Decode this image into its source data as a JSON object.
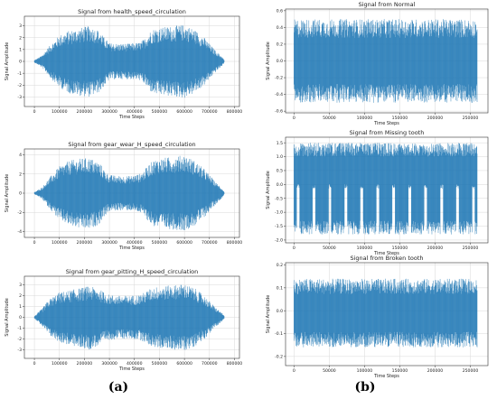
{
  "panel_labels": {
    "a": "(a)",
    "b": "(b)"
  },
  "colors": {
    "signal": "#1f77b4",
    "grid": "#d8d8d8",
    "frame": "#333333"
  },
  "chart_data": [
    {
      "type": "line",
      "title": "Signal from health_speed_circulation",
      "xlabel": "Time Steps",
      "ylabel": "Signal Amplitude",
      "xlim": [
        -40000,
        820000
      ],
      "ylim": [
        -3.8,
        3.8
      ],
      "xticks": [
        0,
        100000,
        200000,
        300000,
        400000,
        500000,
        600000,
        700000,
        800000
      ],
      "yticks": [
        -3,
        -2,
        -1,
        0,
        1,
        2,
        3
      ],
      "grid": true,
      "envelope": {
        "x": [
          0,
          30000,
          60000,
          100000,
          140000,
          180000,
          220000,
          260000,
          280000,
          300000,
          340000,
          380000,
          420000,
          440000,
          460000,
          480000,
          520000,
          560000,
          600000,
          640000,
          680000,
          720000,
          750000,
          760000
        ],
        "upper": [
          0.1,
          0.5,
          1.3,
          2.2,
          2.6,
          2.8,
          3.0,
          2.6,
          2.0,
          1.55,
          1.5,
          1.5,
          1.6,
          1.9,
          2.5,
          2.8,
          2.9,
          3.0,
          3.1,
          2.7,
          2.0,
          1.0,
          0.4,
          0.1
        ],
        "lower": [
          -0.1,
          -0.5,
          -1.3,
          -2.2,
          -2.7,
          -2.9,
          -3.0,
          -2.6,
          -2.1,
          -1.55,
          -1.5,
          -1.5,
          -1.6,
          -1.9,
          -2.5,
          -2.8,
          -2.9,
          -3.0,
          -3.1,
          -2.7,
          -2.0,
          -1.0,
          -0.4,
          -0.1
        ]
      }
    },
    {
      "type": "line",
      "title": "Signal from gear_wear_H_speed_circulation",
      "xlabel": "Time Steps",
      "ylabel": "Signal Amplitude",
      "xlim": [
        -40000,
        820000
      ],
      "ylim": [
        -4.6,
        4.6
      ],
      "xticks": [
        0,
        100000,
        200000,
        300000,
        400000,
        500000,
        600000,
        700000,
        800000
      ],
      "yticks": [
        -4,
        -2,
        0,
        2,
        4
      ],
      "grid": true,
      "envelope": {
        "x": [
          0,
          30000,
          60000,
          100000,
          140000,
          180000,
          220000,
          260000,
          280000,
          300000,
          340000,
          380000,
          420000,
          440000,
          460000,
          480000,
          520000,
          560000,
          600000,
          640000,
          680000,
          720000,
          750000,
          760000
        ],
        "upper": [
          0.1,
          0.6,
          1.6,
          2.8,
          3.4,
          3.6,
          3.7,
          3.2,
          2.4,
          1.9,
          1.8,
          1.8,
          2.0,
          2.4,
          3.1,
          3.5,
          3.7,
          3.8,
          4.0,
          3.4,
          2.5,
          1.3,
          0.5,
          0.1
        ],
        "lower": [
          -0.1,
          -0.6,
          -1.6,
          -2.8,
          -3.4,
          -3.7,
          -3.8,
          -3.2,
          -2.4,
          -1.9,
          -1.8,
          -1.8,
          -2.0,
          -2.4,
          -3.1,
          -3.5,
          -3.7,
          -3.8,
          -3.9,
          -3.4,
          -2.5,
          -1.3,
          -0.5,
          -0.1
        ]
      }
    },
    {
      "type": "line",
      "title": "Signal from gear_pitting_H_speed_circulation",
      "xlabel": "Time Steps",
      "ylabel": "Signal Amplitude",
      "xlim": [
        -40000,
        820000
      ],
      "ylim": [
        -3.8,
        3.8
      ],
      "xticks": [
        0,
        100000,
        200000,
        300000,
        400000,
        500000,
        600000,
        700000,
        800000
      ],
      "yticks": [
        -3,
        -2,
        -1,
        0,
        1,
        2,
        3
      ],
      "grid": true,
      "envelope": {
        "x": [
          0,
          30000,
          60000,
          100000,
          140000,
          180000,
          220000,
          260000,
          280000,
          300000,
          340000,
          380000,
          420000,
          440000,
          460000,
          480000,
          520000,
          560000,
          600000,
          640000,
          680000,
          720000,
          750000,
          760000
        ],
        "upper": [
          0.1,
          0.8,
          1.7,
          2.3,
          2.5,
          2.7,
          2.9,
          2.6,
          2.3,
          2.1,
          2.0,
          2.0,
          2.1,
          2.3,
          2.6,
          2.8,
          2.9,
          3.0,
          3.1,
          2.7,
          2.0,
          1.0,
          0.4,
          0.1
        ],
        "lower": [
          -0.1,
          -0.8,
          -1.7,
          -2.3,
          -2.6,
          -2.8,
          -3.0,
          -2.6,
          -2.3,
          -2.1,
          -2.0,
          -2.0,
          -2.1,
          -2.3,
          -2.6,
          -2.8,
          -2.9,
          -3.0,
          -3.1,
          -2.7,
          -2.0,
          -1.0,
          -0.4,
          -0.1
        ]
      }
    },
    {
      "type": "line",
      "title": "Signal from Normal",
      "xlabel": "Time Steps",
      "ylabel": "Signal Amplitude",
      "xlim": [
        -12000,
        275000
      ],
      "ylim": [
        -0.62,
        0.62
      ],
      "xticks": [
        0,
        50000,
        100000,
        150000,
        200000,
        250000
      ],
      "yticks": [
        -0.6,
        -0.4,
        -0.2,
        0.0,
        0.2,
        0.4,
        0.6
      ],
      "grid": true,
      "envelope": {
        "x": [
          0,
          260000
        ],
        "upper": [
          0.5,
          0.5
        ],
        "lower": [
          -0.5,
          -0.5
        ]
      }
    },
    {
      "type": "line",
      "title": "Signal from Missing tooth",
      "xlabel": "Time Steps",
      "ylabel": "Signal Amplitude",
      "xlim": [
        -12000,
        275000
      ],
      "ylim": [
        -2.1,
        1.7
      ],
      "xticks": [
        0,
        50000,
        100000,
        150000,
        200000,
        250000
      ],
      "yticks": [
        -2.0,
        -1.5,
        -1.0,
        -0.5,
        0.0,
        0.5,
        1.0,
        1.5
      ],
      "grid": true,
      "envelope": {
        "x": [
          0,
          260000
        ],
        "upper": [
          1.5,
          1.5
        ],
        "lower": [
          -1.8,
          -1.8
        ]
      }
    },
    {
      "type": "line",
      "title": "Signal from Broken tooth",
      "xlabel": "Time Steps",
      "ylabel": "Signal Amplitude",
      "xlim": [
        -12000,
        275000
      ],
      "ylim": [
        -0.24,
        0.21
      ],
      "xticks": [
        0,
        50000,
        100000,
        150000,
        200000,
        250000
      ],
      "yticks": [
        -0.2,
        -0.1,
        0.0,
        0.1,
        0.2
      ],
      "grid": true,
      "envelope": {
        "x": [
          0,
          260000
        ],
        "upper": [
          0.14,
          0.14
        ],
        "lower": [
          -0.16,
          -0.16
        ]
      }
    }
  ]
}
